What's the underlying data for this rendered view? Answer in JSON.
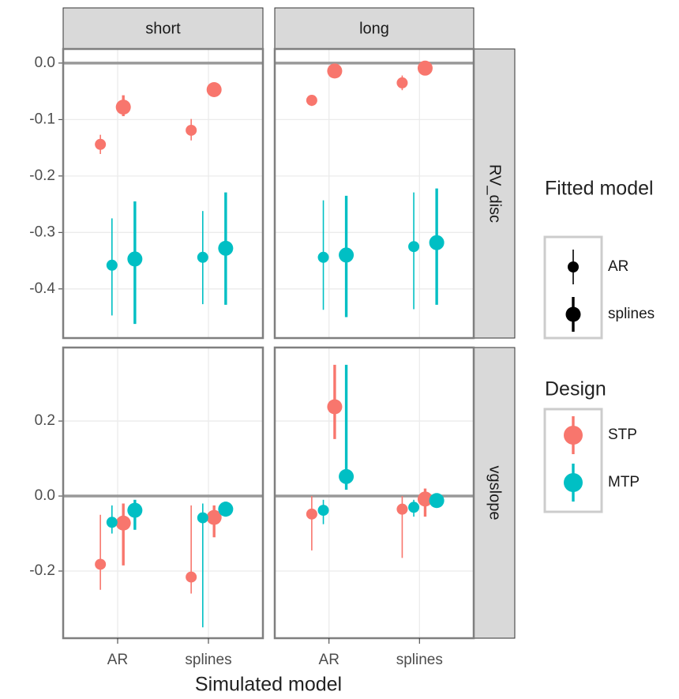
{
  "chart_data": {
    "type": "pointrange",
    "x_label": "Simulated model",
    "categories": [
      "AR",
      "splines"
    ],
    "columns": [
      "short",
      "long"
    ],
    "hline": 0,
    "grid": true,
    "legend_position": "right",
    "designs": {
      "title": "Design",
      "items": [
        {
          "name": "STP",
          "color": "#F8766D"
        },
        {
          "name": "MTP",
          "color": "#00BFC4"
        }
      ]
    },
    "fitted": {
      "title": "Fitted model",
      "items": [
        "AR",
        "splines"
      ]
    },
    "rows": [
      {
        "name": "RV_disc",
        "ylim": [
          0.025,
          -0.487
        ],
        "yticks": [
          {
            "value": 0,
            "label": "0.0"
          },
          -0.1,
          -0.2,
          -0.3,
          -0.4
        ],
        "panels": [
          {
            "series": [
              [
                {
                  "values": [
                    -0.144,
                    -0.119
                  ],
                  "low": [
                    -0.161,
                    -0.137
                  ],
                  "high": [
                    -0.127,
                    -0.099
                  ]
                },
                {
                  "values": [
                    -0.078,
                    -0.047
                  ],
                  "low": [
                    -0.094,
                    -0.054
                  ],
                  "high": [
                    -0.057,
                    -0.04
                  ]
                }
              ],
              [
                {
                  "values": [
                    -0.358,
                    -0.344
                  ],
                  "low": [
                    -0.447,
                    -0.427
                  ],
                  "high": [
                    -0.275,
                    -0.262
                  ]
                },
                {
                  "values": [
                    -0.347,
                    -0.328
                  ],
                  "low": [
                    -0.462,
                    -0.428
                  ],
                  "high": [
                    -0.245,
                    -0.229
                  ]
                }
              ]
            ]
          },
          {
            "series": [
              [
                {
                  "values": [
                    -0.066,
                    -0.035
                  ],
                  "low": [
                    -0.076,
                    -0.048
                  ],
                  "high": [
                    -0.058,
                    -0.022
                  ]
                },
                {
                  "values": [
                    -0.014,
                    -0.009
                  ],
                  "low": [
                    -0.018,
                    -0.013
                  ],
                  "high": [
                    -0.01,
                    -0.005
                  ]
                }
              ],
              [
                {
                  "values": [
                    -0.344,
                    -0.325
                  ],
                  "low": [
                    -0.437,
                    -0.436
                  ],
                  "high": [
                    -0.243,
                    -0.229
                  ]
                },
                {
                  "values": [
                    -0.34,
                    -0.318
                  ],
                  "low": [
                    -0.45,
                    -0.428
                  ],
                  "high": [
                    -0.235,
                    -0.222
                  ]
                }
              ]
            ]
          }
        ]
      },
      {
        "name": "vgslope",
        "ylim": [
          0.396,
          -0.379
        ],
        "yticks": [
          0.2,
          {
            "value": 0,
            "label": "0.0"
          },
          -0.2
        ],
        "panels": [
          {
            "series": [
              [
                {
                  "values": [
                    -0.182,
                    -0.216
                  ],
                  "low": [
                    -0.25,
                    -0.26
                  ],
                  "high": [
                    -0.05,
                    -0.025
                  ]
                },
                {
                  "values": [
                    -0.072,
                    -0.057
                  ],
                  "low": [
                    -0.185,
                    -0.11
                  ],
                  "high": [
                    -0.02,
                    -0.025
                  ]
                }
              ],
              [
                {
                  "values": [
                    -0.07,
                    -0.058
                  ],
                  "low": [
                    -0.1,
                    -0.35
                  ],
                  "high": [
                    -0.025,
                    -0.02
                  ]
                },
                {
                  "values": [
                    -0.038,
                    -0.035
                  ],
                  "low": [
                    -0.09,
                    -0.055
                  ],
                  "high": [
                    -0.01,
                    -0.015
                  ]
                }
              ]
            ]
          },
          {
            "series": [
              [
                {
                  "values": [
                    -0.048,
                    -0.035
                  ],
                  "low": [
                    -0.145,
                    -0.165
                  ],
                  "high": [
                    0,
                    0
                  ]
                },
                {
                  "values": [
                    0.238,
                    -0.008
                  ],
                  "low": [
                    0.152,
                    -0.055
                  ],
                  "high": [
                    0.35,
                    0.02
                  ]
                }
              ],
              [
                {
                  "values": [
                    -0.038,
                    -0.03
                  ],
                  "low": [
                    -0.075,
                    -0.055
                  ],
                  "high": [
                    -0.01,
                    -0.01
                  ]
                },
                {
                  "values": [
                    0.052,
                    -0.012
                  ],
                  "low": [
                    0.017,
                    -0.03
                  ],
                  "high": [
                    0.35,
                    0
                  ]
                }
              ]
            ]
          }
        ]
      }
    ]
  }
}
